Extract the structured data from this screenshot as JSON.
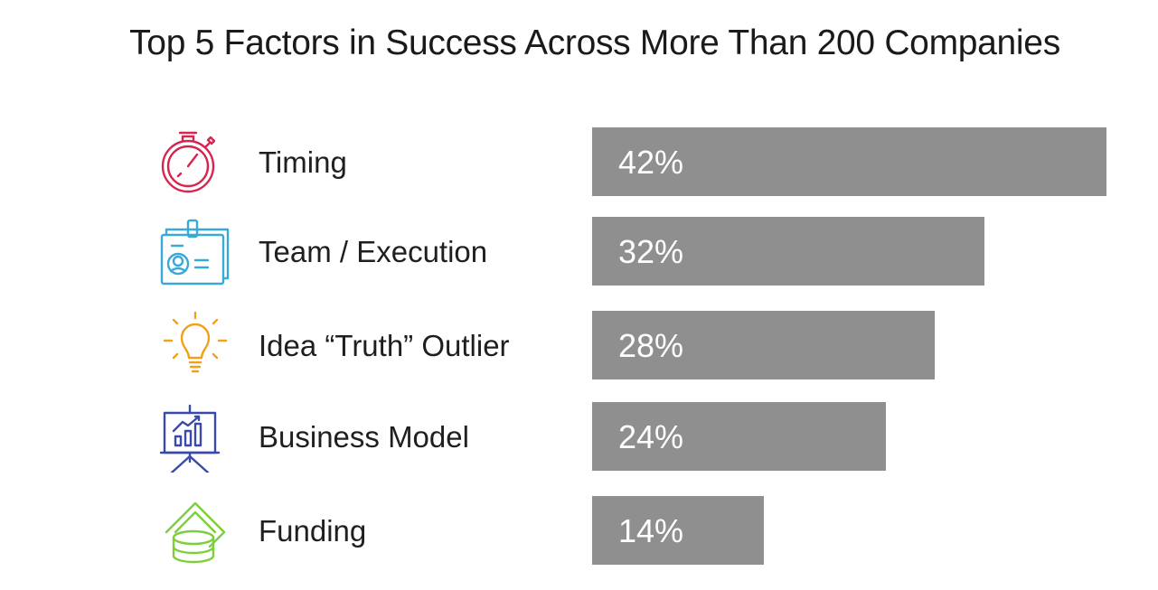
{
  "title": "Top 5 Factors in Success Across More Than 200 Companies",
  "colors": {
    "bar": "#8f8f8f",
    "bar_text": "#ffffff",
    "timing_icon": "#d6254f",
    "team_icon": "#38a9d9",
    "idea_icon": "#f0a21b",
    "business_icon": "#3b4aa8",
    "funding_icon": "#7ccf3b"
  },
  "rows": [
    {
      "label": "Timing",
      "value_label": "42%",
      "icon": "stopwatch-icon"
    },
    {
      "label": "Team / Execution",
      "value_label": "32%",
      "icon": "id-badge-icon"
    },
    {
      "label": "Idea “Truth” Outlier",
      "value_label": "28%",
      "icon": "lightbulb-icon"
    },
    {
      "label": "Business Model",
      "value_label": "24%",
      "icon": "presentation-chart-icon"
    },
    {
      "label": "Funding",
      "value_label": "14%",
      "icon": "money-coins-icon"
    }
  ],
  "chart_data": {
    "type": "bar",
    "orientation": "horizontal",
    "title": "Top 5 Factors in Success Across More Than 200 Companies",
    "categories": [
      "Timing",
      "Team / Execution",
      "Idea “Truth” Outlier",
      "Business Model",
      "Funding"
    ],
    "values": [
      42,
      32,
      28,
      24,
      14
    ],
    "unit": "%",
    "xlim": [
      0,
      42
    ],
    "grid": false,
    "legend": "none",
    "data_labels": [
      "42%",
      "32%",
      "28%",
      "24%",
      "14%"
    ]
  }
}
